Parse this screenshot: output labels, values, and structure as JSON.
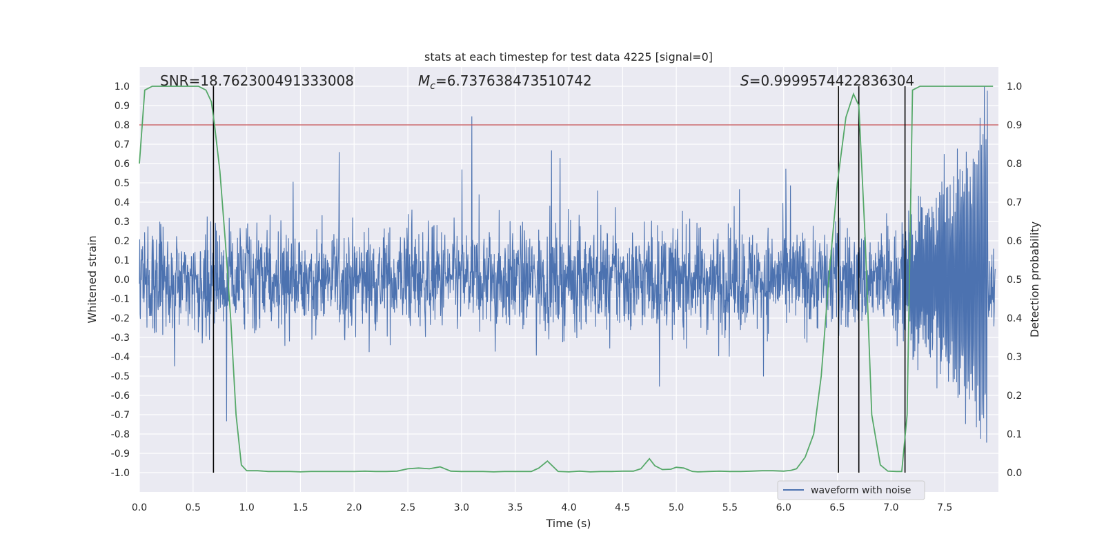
{
  "chart_data": {
    "type": "line",
    "title": "stats at each timestep for test data 4225 [signal=0]",
    "xlabel": "Time (s)",
    "ylabel_left": "Whitened strain",
    "ylabel_right": "Detection probability",
    "xlim": [
      0.0,
      8.0
    ],
    "ylim_left": [
      -1.1,
      1.1
    ],
    "ylim_right": [
      -0.05,
      1.05
    ],
    "x_ticks": [
      "0.0",
      "0.5",
      "1.0",
      "1.5",
      "2.0",
      "2.5",
      "3.0",
      "3.5",
      "4.0",
      "4.5",
      "5.0",
      "5.5",
      "6.0",
      "6.5",
      "7.0",
      "7.5"
    ],
    "x_tick_values": [
      0.0,
      0.5,
      1.0,
      1.5,
      2.0,
      2.5,
      3.0,
      3.5,
      4.0,
      4.5,
      5.0,
      5.5,
      6.0,
      6.5,
      7.0,
      7.5
    ],
    "y_left_ticks": [
      "1.0",
      "0.9",
      "0.8",
      "0.7",
      "0.6",
      "0.5",
      "0.4",
      "0.3",
      "0.2",
      "0.1",
      "0.0",
      "-0.1",
      "-0.2",
      "-0.3",
      "-0.4",
      "-0.5",
      "-0.6",
      "-0.7",
      "-0.8",
      "-0.9",
      "-1.0"
    ],
    "y_left_tick_values": [
      1.0,
      0.9,
      0.8,
      0.7,
      0.6,
      0.5,
      0.4,
      0.3,
      0.2,
      0.1,
      0.0,
      -0.1,
      -0.2,
      -0.3,
      -0.4,
      -0.5,
      -0.6,
      -0.7,
      -0.8,
      -0.9,
      -1.0
    ],
    "y_right_ticks": [
      "1.0",
      "0.9",
      "0.8",
      "0.7",
      "0.6",
      "0.5",
      "0.4",
      "0.3",
      "0.2",
      "0.1",
      "0.0"
    ],
    "y_right_tick_values": [
      1.0,
      0.9,
      0.8,
      0.7,
      0.6,
      0.5,
      0.4,
      0.3,
      0.2,
      0.1,
      0.0
    ],
    "grid": true,
    "annotations": {
      "snr": "SNR=18.762300491333008",
      "mc_symbol": "M",
      "mc_sub": "c",
      "mc_value": "=6.737638473510742",
      "s_symbol": "S",
      "s_value": "=0.9999574422836304"
    },
    "threshold_right": 0.9,
    "vertical_lines_x": [
      0.69,
      6.51,
      6.7,
      7.13
    ],
    "series": [
      {
        "name": "waveform with noise",
        "color": "#4c72b0",
        "kind": "noisy strain",
        "envelope_approx": {
          "baseline_amplitude": 0.35,
          "chirp_start": 7.1,
          "chirp_end": 7.9,
          "chirp_peak_amplitude": 1.0
        }
      },
      {
        "name": "detection probability",
        "color": "#55a868",
        "x": [
          0.0,
          0.05,
          0.12,
          0.25,
          0.4,
          0.55,
          0.62,
          0.67,
          0.7,
          0.75,
          0.8,
          0.85,
          0.9,
          0.95,
          1.0,
          1.05,
          1.1,
          1.2,
          1.3,
          1.4,
          1.5,
          1.6,
          1.7,
          1.8,
          1.9,
          2.0,
          2.1,
          2.2,
          2.3,
          2.4,
          2.5,
          2.6,
          2.7,
          2.8,
          2.9,
          3.0,
          3.1,
          3.2,
          3.3,
          3.4,
          3.5,
          3.6,
          3.65,
          3.72,
          3.8,
          3.9,
          4.0,
          4.1,
          4.2,
          4.3,
          4.4,
          4.5,
          4.6,
          4.67,
          4.75,
          4.8,
          4.87,
          4.95,
          5.0,
          5.07,
          5.15,
          5.2,
          5.3,
          5.4,
          5.5,
          5.6,
          5.7,
          5.8,
          5.9,
          6.0,
          6.07,
          6.12,
          6.2,
          6.28,
          6.35,
          6.42,
          6.5,
          6.58,
          6.65,
          6.7,
          6.76,
          6.82,
          6.9,
          6.97,
          7.05,
          7.1,
          7.15,
          7.2,
          7.27,
          7.35,
          7.5,
          7.7,
          7.95
        ],
        "y": [
          0.8,
          0.99,
          1.0,
          1.0,
          1.0,
          1.0,
          0.99,
          0.96,
          0.9,
          0.78,
          0.6,
          0.4,
          0.15,
          0.02,
          0.005,
          0.005,
          0.005,
          0.003,
          0.003,
          0.003,
          0.002,
          0.003,
          0.003,
          0.003,
          0.003,
          0.003,
          0.004,
          0.003,
          0.003,
          0.004,
          0.01,
          0.012,
          0.01,
          0.015,
          0.004,
          0.003,
          0.003,
          0.003,
          0.002,
          0.003,
          0.003,
          0.003,
          0.003,
          0.012,
          0.03,
          0.003,
          0.002,
          0.004,
          0.002,
          0.003,
          0.003,
          0.004,
          0.004,
          0.01,
          0.036,
          0.018,
          0.008,
          0.009,
          0.014,
          0.012,
          0.003,
          0.002,
          0.003,
          0.004,
          0.003,
          0.003,
          0.004,
          0.005,
          0.005,
          0.004,
          0.006,
          0.01,
          0.04,
          0.1,
          0.25,
          0.5,
          0.75,
          0.92,
          0.98,
          0.95,
          0.6,
          0.15,
          0.02,
          0.004,
          0.003,
          0.003,
          0.15,
          0.99,
          1.0,
          1.0,
          1.0,
          1.0,
          1.0
        ]
      }
    ],
    "legend": {
      "placement": "bottom-right",
      "entries": [
        "waveform with noise"
      ]
    }
  },
  "colors": {
    "axes_bg": "#eaeaf2",
    "grid": "#ffffff",
    "strain": "#4c72b0",
    "probability": "#55a868",
    "threshold": "#c44e52",
    "vline": "#000000"
  }
}
